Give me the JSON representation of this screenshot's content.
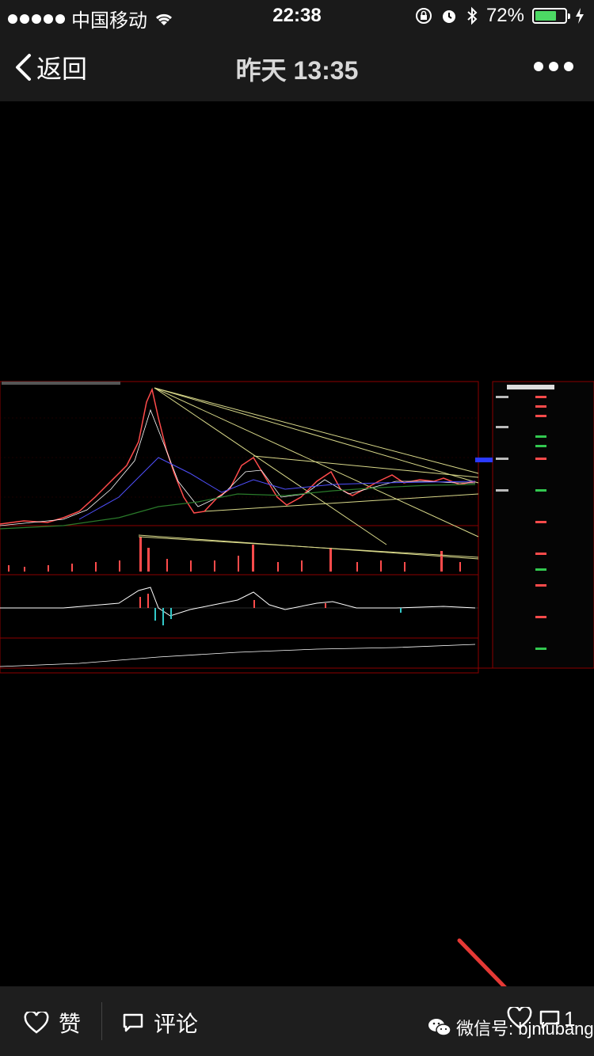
{
  "status_bar": {
    "carrier": "中国移动",
    "time": "22:38",
    "battery": "72%",
    "battery_level": 0.72
  },
  "nav": {
    "back_label": "返回",
    "title": "昨天 13:35"
  },
  "bottom": {
    "like_label": "赞",
    "comment_label": "评论",
    "watermark": "微信号: bjniubang",
    "comment_count": "1"
  },
  "colors": {
    "accent_green": "#4cd964",
    "bar_bg": "#1a1a1a",
    "arrow_red": "#e53935"
  }
}
